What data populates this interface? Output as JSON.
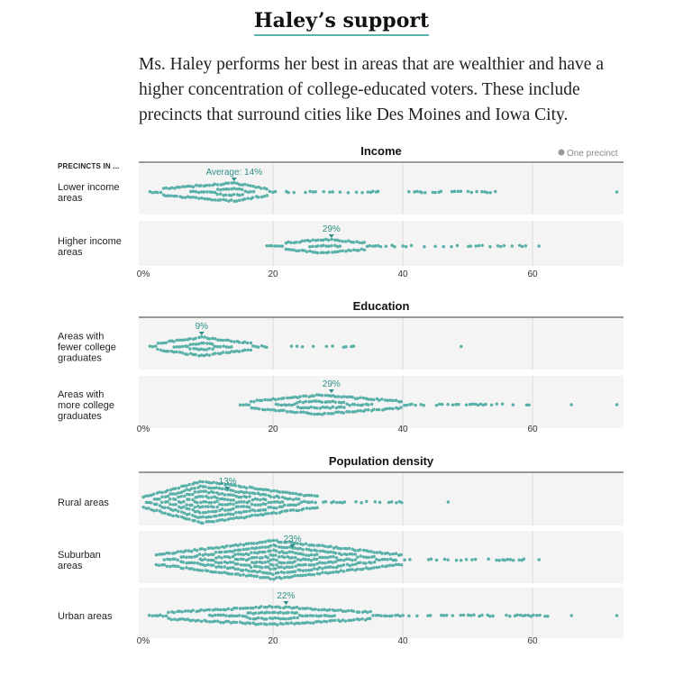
{
  "title": "Haley’s support",
  "intro": "Ms. Haley performs her best in areas that are wealthier and have a higher concentration of college-educated voters. These include precincts that surround cities like Des Moines and Iowa City.",
  "legend": "One precinct",
  "row_header": "PRECINCTS IN ...",
  "colors": {
    "dot": "#5ab4ac",
    "dot_stroke": "#3f9e96",
    "band": "#f4f4f4",
    "avg_text": "#2e8f87",
    "accent": "#5ab4ac"
  },
  "chart_data": {
    "type": "beeswarm",
    "xlim": [
      0,
      73
    ],
    "ticks": [
      {
        "value": 0,
        "label": "0%"
      },
      {
        "value": 20,
        "label": "20"
      },
      {
        "value": 40,
        "label": "40"
      },
      {
        "value": 60,
        "label": "60"
      }
    ],
    "panels": [
      {
        "title": "Income",
        "rows": [
          {
            "label_lines": [
              "Lower income",
              "areas"
            ],
            "marker_label": "Average: 14%",
            "marker_value": 14,
            "peak": 14,
            "dense_start": 1,
            "dense_end": 20,
            "spread_end": 55,
            "extremes": [
              73
            ],
            "density": 1.0
          },
          {
            "label_lines": [
              "Higher income",
              "areas"
            ],
            "marker_label": "29%",
            "marker_value": 29,
            "peak": 28,
            "dense_start": 19,
            "dense_end": 37,
            "spread_end": 59,
            "extremes": [
              61
            ],
            "density": 0.75
          }
        ]
      },
      {
        "title": "Education",
        "rows": [
          {
            "label_lines": [
              "Areas with",
              "fewer college",
              "graduates"
            ],
            "marker_label": "9%",
            "marker_value": 9,
            "peak": 9,
            "dense_start": 1,
            "dense_end": 18,
            "spread_end": 33,
            "extremes": [
              49
            ],
            "density": 1.0
          },
          {
            "label_lines": [
              "Areas with",
              "more college",
              "graduates"
            ],
            "marker_label": "29%",
            "marker_value": 29,
            "peak": 27,
            "dense_start": 15,
            "dense_end": 42,
            "spread_end": 60,
            "extremes": [
              66,
              73
            ],
            "density": 1.05
          }
        ]
      },
      {
        "title": "Population density",
        "rows": [
          {
            "label_lines": [
              "Rural areas"
            ],
            "marker_label": "13%",
            "marker_value": 13,
            "peak": 9,
            "dense_start": 0,
            "dense_end": 27,
            "spread_end": 40,
            "extremes": [
              47
            ],
            "density": 2.3
          },
          {
            "label_lines": [
              "Suburban",
              "areas"
            ],
            "marker_label": "23%",
            "marker_value": 23,
            "peak": 20,
            "dense_start": 2,
            "dense_end": 40,
            "spread_end": 60,
            "extremes": [
              61
            ],
            "density": 2.1
          },
          {
            "label_lines": [
              "Urban areas"
            ],
            "marker_label": "22%",
            "marker_value": 22,
            "peak": 20,
            "dense_start": 1,
            "dense_end": 38,
            "spread_end": 63,
            "extremes": [
              66,
              73
            ],
            "density": 1.0
          }
        ]
      }
    ]
  }
}
